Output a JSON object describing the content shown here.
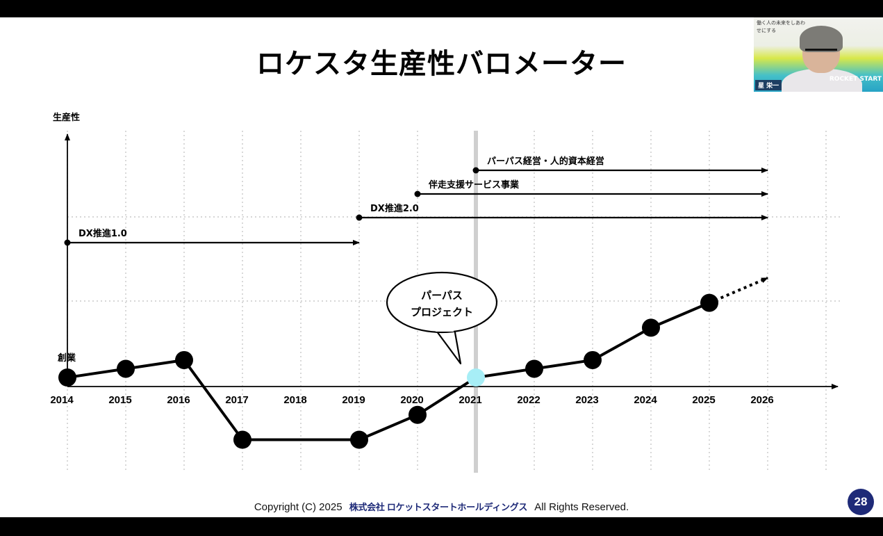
{
  "slide": {
    "title": "ロケスタ生産性バロメーター",
    "footer_left": "Copyright (C) 2025",
    "footer_company": "株式会社 ロケットスタートホールディングス",
    "footer_right": "All Rights Reserved.",
    "page_number": "28"
  },
  "video_tile": {
    "tagline": "働く人の未来をしあわせにする",
    "name_tag": "星 栄一",
    "brand": "ROCKET START"
  },
  "colors": {
    "line": "#000000",
    "grid": "#bdbdbd",
    "highlight_point": "#a7eef6",
    "vertical_band": "#cfcfcf",
    "badge": "#1e2a78"
  },
  "chart_data": {
    "type": "line",
    "title": "",
    "ylabel": "生産性",
    "xlabel": "",
    "x": [
      "2014",
      "2015",
      "2016",
      "2017",
      "2018",
      "2019",
      "2020",
      "2021",
      "2022",
      "2023",
      "2024",
      "2025",
      "2026"
    ],
    "y_scale": "relative, unlabeled",
    "series": [
      {
        "values": [
          {
            "x": "2014",
            "y": 0
          },
          {
            "x": "2015",
            "y": 0.7
          },
          {
            "x": "2016",
            "y": 1.4
          },
          {
            "x": "2017",
            "y": -5.0
          },
          {
            "x": "2019",
            "y": -5.0
          },
          {
            "x": "2020",
            "y": -3.0
          },
          {
            "x": "2021",
            "y": 0
          },
          {
            "x": "2022",
            "y": 0.7
          },
          {
            "x": "2023",
            "y": 1.4
          },
          {
            "x": "2024",
            "y": 4.0
          },
          {
            "x": "2025",
            "y": 6.0
          }
        ],
        "projection": [
          {
            "x": "2025",
            "y": 6.0
          },
          {
            "x": "2026",
            "y": 8.0
          }
        ],
        "highlight": {
          "x": "2021"
        }
      }
    ],
    "start_label": {
      "x": "2014",
      "text": "創業"
    },
    "callout": {
      "x": "2021",
      "lines": [
        "パーパス",
        "プロジェクト"
      ]
    },
    "vertical_marker": {
      "x": "2021"
    },
    "initiatives": [
      {
        "label": "パーパス経営・人的資本経営",
        "start": "2021",
        "end": "2026"
      },
      {
        "label": "伴走支援サービス事業",
        "start": "2020",
        "end": "2026"
      },
      {
        "label": "DX推進2.0",
        "start": "2019",
        "end": "2026"
      },
      {
        "label": "DX推進1.0",
        "start": "2014",
        "end": "2019"
      }
    ],
    "grid": true
  }
}
